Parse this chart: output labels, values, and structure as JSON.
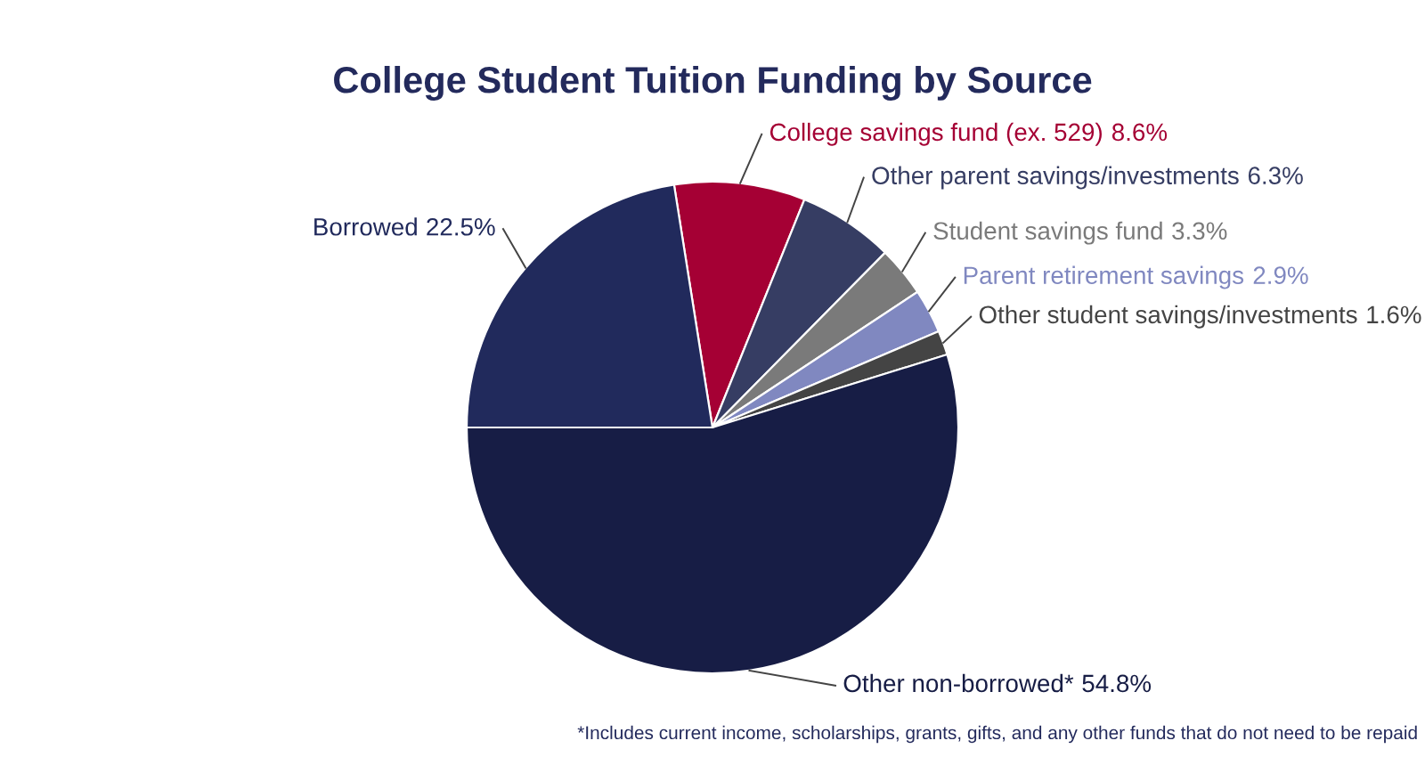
{
  "chart_data": {
    "type": "pie",
    "title": "College Student Tuition Funding by Source",
    "categories": [
      "College savings fund (ex. 529)",
      "Other parent savings/investments",
      "Student savings fund",
      "Parent retirement savings",
      "Other student savings/investments",
      "Other non-borrowed*",
      "Borrowed"
    ],
    "values": [
      8.6,
      6.3,
      3.3,
      2.9,
      1.6,
      54.8,
      22.5
    ],
    "colors": [
      "#a50034",
      "#363d63",
      "#7a7a7a",
      "#8088c0",
      "#444444",
      "#171d45",
      "#212a5c"
    ],
    "value_labels": [
      "8.6%",
      "6.3%",
      "3.3%",
      "2.9%",
      "1.6%",
      "54.8%",
      "22.5%"
    ],
    "annotations": [
      "*Includes current income, scholarships, grants, gifts, and any other funds that do not need to be repaid"
    ]
  }
}
